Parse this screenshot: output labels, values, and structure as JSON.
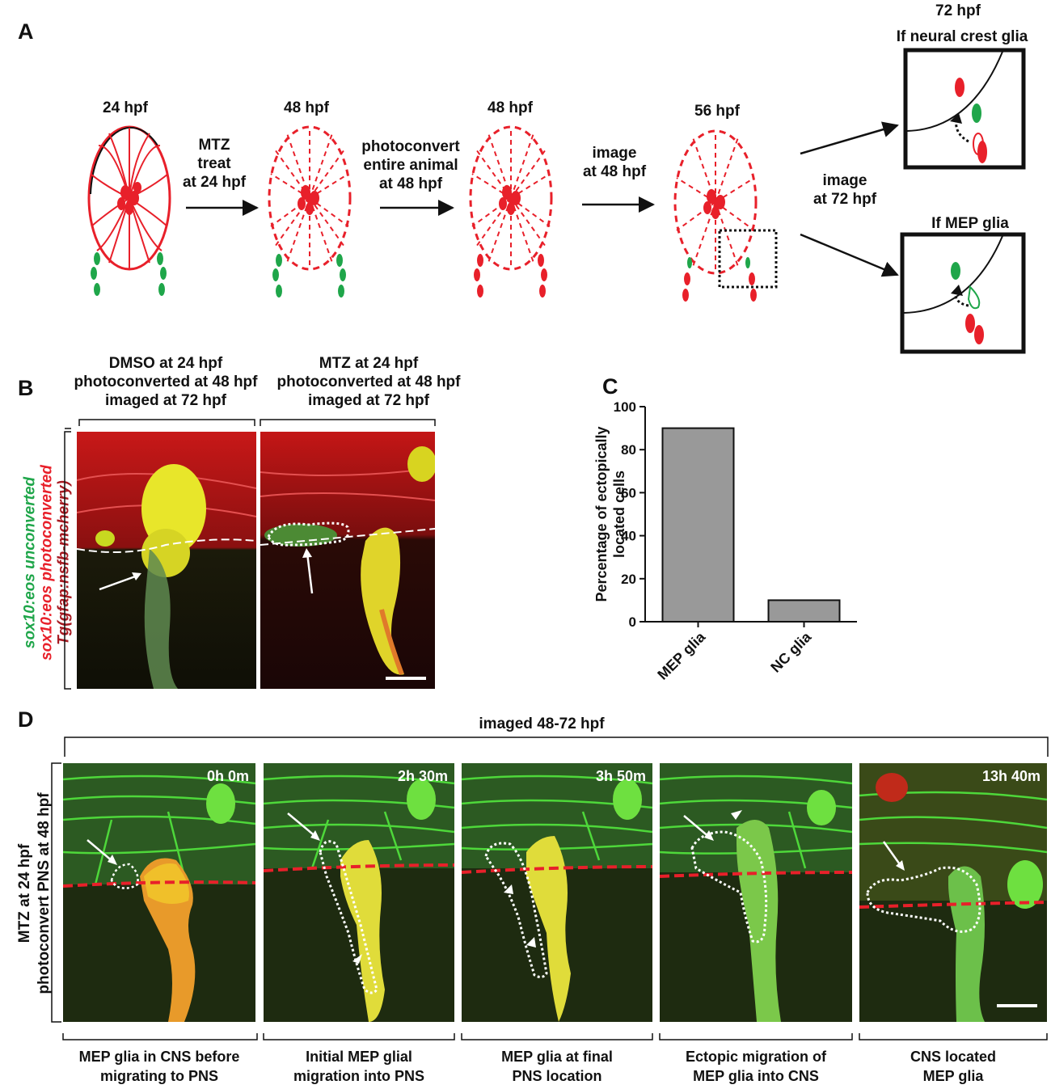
{
  "panel_a": {
    "letter": "A",
    "stages": [
      "24 hpf",
      "48 hpf",
      "48 hpf",
      "56 hpf"
    ],
    "steps": [
      [
        "MTZ",
        "treat",
        "at 24 hpf"
      ],
      [
        "photoconvert",
        "entire animal",
        "at 48 hpf"
      ],
      [
        "image",
        "at 48 hpf"
      ]
    ],
    "branch_label": [
      "image",
      "at 72 hpf"
    ],
    "outcome_time": "72 hpf",
    "outcome_nc": "If neural crest glia",
    "outcome_mep": "If MEP glia",
    "colors": {
      "red": "#e8202a",
      "green": "#1fa64a"
    }
  },
  "panel_b": {
    "letter": "B",
    "col1": [
      "DMSO at 24 hpf",
      "photoconverted at 48 hpf",
      "imaged at 72 hpf"
    ],
    "col2": [
      "MTZ at 24 hpf",
      "photoconverted at 48 hpf",
      "imaged at 72 hpf"
    ],
    "side_green": "sox10:eos unconverted",
    "side_red": "sox10:eos photoconverted",
    "side_darkred": "Tg(gfap:nsfb-mcherry)"
  },
  "panel_c": {
    "letter": "C"
  },
  "chart_data": {
    "type": "bar",
    "categories": [
      "MEP glia",
      "NC glia"
    ],
    "values": [
      90,
      10
    ],
    "ylabel": "Percentage of ectopically located cells",
    "ylabel_lines": [
      "Percentage of ectopically",
      "located cells"
    ],
    "ylim": [
      0,
      100
    ],
    "yticks": [
      0,
      20,
      40,
      60,
      80,
      100
    ],
    "bar_color": "#999999"
  },
  "panel_d": {
    "letter": "D",
    "header": "imaged 48-72 hpf",
    "side": [
      "MTZ at 24 hpf",
      "photoconvert PNS at 48 hpf"
    ],
    "frames": [
      {
        "time": "0h 0m",
        "caption": [
          "MEP glia in CNS before",
          "migrating to PNS"
        ]
      },
      {
        "time": "2h 30m",
        "caption": [
          "Initial MEP glial",
          "migration into PNS"
        ]
      },
      {
        "time": "3h 50m",
        "caption": [
          "MEP glia at final",
          "PNS location"
        ]
      },
      {
        "time": "",
        "caption": [
          "Ectopic migration of",
          "MEP glia into CNS"
        ]
      },
      {
        "time": "13h 40m",
        "caption": [
          "CNS located",
          "MEP glia"
        ]
      }
    ]
  }
}
